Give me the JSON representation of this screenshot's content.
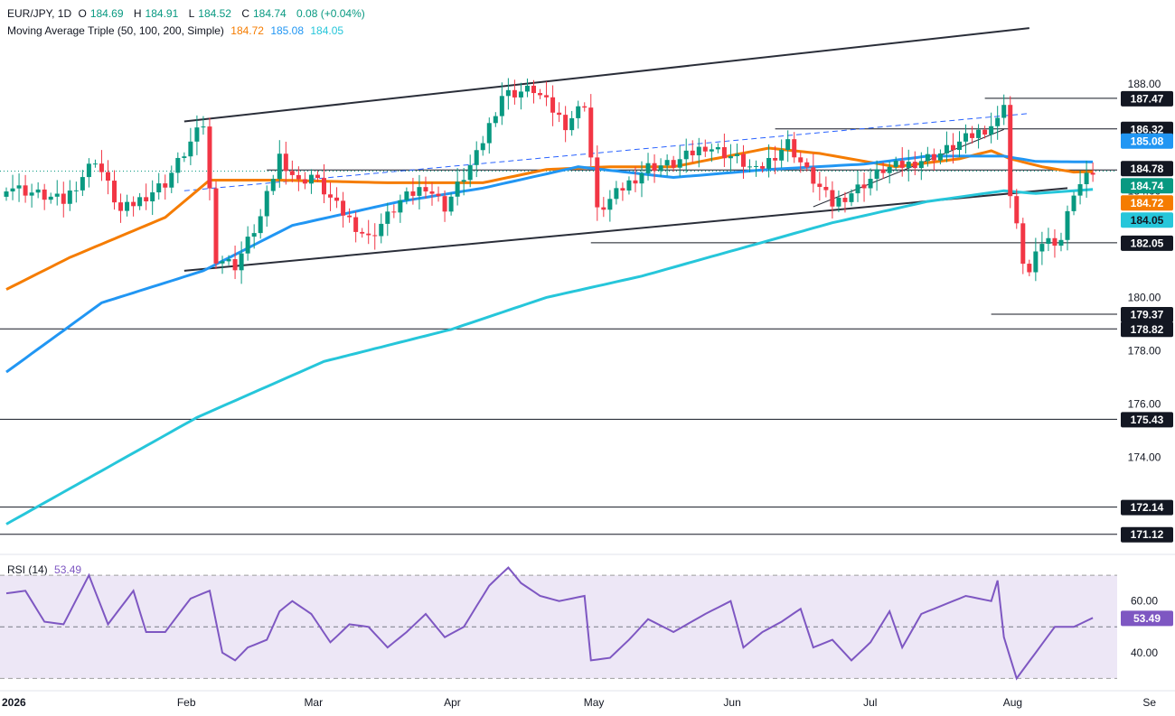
{
  "header": {
    "symbol": "EUR/JPY, 1D",
    "ohlc": {
      "open_label": "O",
      "open": "184.69",
      "high_label": "H",
      "high": "184.91",
      "low_label": "L",
      "low": "184.52",
      "close_label": "C",
      "close": "184.74",
      "change": "0.08 (+0.04%)"
    },
    "ma_title": "Moving Average Triple (50, 100, 200, Simple)",
    "ma_values": [
      "184.72",
      "185.08",
      "184.05"
    ],
    "rsi_title": "RSI (14)",
    "rsi_value": "53.49"
  },
  "colors": {
    "up": "#089981",
    "down": "#f23645",
    "ma50": "#f57c00",
    "ma100": "#2196f3",
    "ma200": "#26c6da",
    "rsi": "#7e57c2",
    "rsi_band": "#ede7f6",
    "trend": "#2a2e39",
    "trend_dashed": "#2962ff",
    "last_price": "#089981",
    "axis_text": "#131722"
  },
  "chart_data": [
    {
      "type": "candlestick",
      "title": "EUR/JPY, 1D",
      "y_ticks": [
        174,
        176,
        178,
        180,
        182,
        184,
        186,
        188
      ],
      "y_tick_labels": [
        "174.00",
        "176.00",
        "178.00",
        "180.00",
        "182.00",
        "184.00",
        "186.00",
        "188.00"
      ],
      "ylim": [
        170.5,
        189.8
      ],
      "x_tick_labels": [
        "2026",
        "Feb",
        "Mar",
        "Apr",
        "May",
        "Jun",
        "Jul",
        "Aug",
        "Se"
      ],
      "x_tick_bar_index": [
        0,
        28,
        48,
        70,
        92,
        114,
        136,
        158,
        180
      ],
      "bar_count": 172,
      "key_close_path": [
        [
          0,
          184.2
        ],
        [
          9,
          183.6
        ],
        [
          14,
          185.2
        ],
        [
          18,
          183.2
        ],
        [
          25,
          184.3
        ],
        [
          29,
          185.8
        ],
        [
          31,
          186.5
        ],
        [
          33,
          181.5
        ],
        [
          36,
          181.2
        ],
        [
          40,
          183.0
        ],
        [
          43,
          185.3
        ],
        [
          46,
          184.3
        ],
        [
          48,
          184.6
        ],
        [
          52,
          183.4
        ],
        [
          57,
          182.2
        ],
        [
          62,
          183.6
        ],
        [
          66,
          184.2
        ],
        [
          69,
          183.4
        ],
        [
          74,
          185.3
        ],
        [
          78,
          187.6
        ],
        [
          83,
          187.8
        ],
        [
          88,
          186.5
        ],
        [
          91,
          187.3
        ],
        [
          93,
          183.2
        ],
        [
          97,
          184.1
        ],
        [
          101,
          184.9
        ],
        [
          105,
          185.0
        ],
        [
          110,
          185.7
        ],
        [
          115,
          185.2
        ],
        [
          118,
          184.7
        ],
        [
          123,
          185.8
        ],
        [
          126,
          184.7
        ],
        [
          130,
          183.5
        ],
        [
          134,
          184.1
        ],
        [
          138,
          184.8
        ],
        [
          142,
          185.0
        ],
        [
          147,
          185.4
        ],
        [
          153,
          186.2
        ],
        [
          156,
          186.6
        ],
        [
          157,
          187.4
        ],
        [
          158,
          183.8
        ],
        [
          160,
          181.4
        ],
        [
          161,
          180.9
        ],
        [
          163,
          182.1
        ],
        [
          166,
          182.2
        ],
        [
          168,
          184.0
        ],
        [
          171,
          184.74
        ]
      ],
      "series": [
        {
          "name": "50",
          "values": [
            [
              0,
              180.3
            ],
            [
              10,
              181.5
            ],
            [
              25,
              183.0
            ],
            [
              32,
              184.4
            ],
            [
              43,
              184.4
            ],
            [
              60,
              184.3
            ],
            [
              75,
              184.3
            ],
            [
              85,
              184.8
            ],
            [
              95,
              184.9
            ],
            [
              105,
              184.9
            ],
            [
              120,
              185.6
            ],
            [
              128,
              185.4
            ],
            [
              140,
              184.9
            ],
            [
              150,
              185.2
            ],
            [
              155,
              185.5
            ],
            [
              158,
              185.2
            ],
            [
              163,
              184.9
            ],
            [
              168,
              184.7
            ],
            [
              171,
              184.72
            ]
          ]
        },
        {
          "name": "100",
          "values": [
            [
              0,
              177.2
            ],
            [
              15,
              179.8
            ],
            [
              31,
              181.0
            ],
            [
              45,
              182.7
            ],
            [
              62,
              183.6
            ],
            [
              75,
              184.1
            ],
            [
              90,
              184.9
            ],
            [
              105,
              184.5
            ],
            [
              120,
              184.8
            ],
            [
              135,
              185.0
            ],
            [
              145,
              185.3
            ],
            [
              157,
              185.3
            ],
            [
              162,
              185.1
            ],
            [
              171,
              185.08
            ]
          ]
        },
        {
          "name": "200",
          "values": [
            [
              0,
              171.5
            ],
            [
              30,
              175.5
            ],
            [
              50,
              177.6
            ],
            [
              70,
              178.8
            ],
            [
              85,
              180.0
            ],
            [
              100,
              180.8
            ],
            [
              115,
              181.8
            ],
            [
              130,
              182.8
            ],
            [
              145,
              183.6
            ],
            [
              157,
              184.0
            ],
            [
              162,
              183.9
            ],
            [
              171,
              184.05
            ]
          ]
        }
      ],
      "horizontal_levels": [
        {
          "value": 187.47,
          "label": "187.47"
        },
        {
          "value": 186.32,
          "label": "186.32"
        },
        {
          "value": 185.08,
          "label": "185.08"
        },
        {
          "value": 184.78,
          "label": "184.78"
        },
        {
          "value": 184.74,
          "label": "184.74"
        },
        {
          "value": 184.72,
          "label": "184.72"
        },
        {
          "value": 184.05,
          "label": "184.05"
        },
        {
          "value": 182.05,
          "label": "182.05"
        },
        {
          "value": 179.37,
          "label": "179.37"
        },
        {
          "value": 178.82,
          "label": "178.82"
        },
        {
          "value": 175.43,
          "label": "175.43"
        },
        {
          "value": 172.14,
          "label": "172.14"
        },
        {
          "value": 171.12,
          "label": "171.12"
        }
      ]
    },
    {
      "type": "line",
      "title": "RSI (14)",
      "ylim": [
        27,
        76
      ],
      "y_ticks": [
        40,
        60
      ],
      "y_tick_labels": [
        "40.00",
        "60.00"
      ],
      "band": [
        30,
        70
      ],
      "midline": 50,
      "last_value": 53.49,
      "series": [
        {
          "name": "RSI",
          "values": [
            [
              0,
              63
            ],
            [
              3,
              64
            ],
            [
              6,
              52
            ],
            [
              9,
              51
            ],
            [
              13,
              70
            ],
            [
              16,
              51
            ],
            [
              20,
              64
            ],
            [
              22,
              48
            ],
            [
              25,
              48
            ],
            [
              29,
              61
            ],
            [
              32,
              64
            ],
            [
              34,
              40
            ],
            [
              36,
              37
            ],
            [
              38,
              42
            ],
            [
              41,
              45
            ],
            [
              43,
              56
            ],
            [
              45,
              60
            ],
            [
              48,
              55
            ],
            [
              51,
              44
            ],
            [
              54,
              51
            ],
            [
              57,
              50
            ],
            [
              60,
              42
            ],
            [
              63,
              48
            ],
            [
              66,
              55
            ],
            [
              69,
              46
            ],
            [
              72,
              50
            ],
            [
              76,
              66
            ],
            [
              79,
              73
            ],
            [
              81,
              67
            ],
            [
              84,
              62
            ],
            [
              87,
              60
            ],
            [
              91,
              62
            ],
            [
              92,
              37
            ],
            [
              95,
              38
            ],
            [
              98,
              45
            ],
            [
              101,
              53
            ],
            [
              105,
              48
            ],
            [
              110,
              55
            ],
            [
              114,
              60
            ],
            [
              116,
              42
            ],
            [
              119,
              48
            ],
            [
              122,
              52
            ],
            [
              125,
              57
            ],
            [
              127,
              42
            ],
            [
              130,
              45
            ],
            [
              133,
              37
            ],
            [
              136,
              44
            ],
            [
              139,
              56
            ],
            [
              141,
              42
            ],
            [
              144,
              55
            ],
            [
              147,
              58
            ],
            [
              151,
              62
            ],
            [
              155,
              60
            ],
            [
              156,
              68
            ],
            [
              157,
              46
            ],
            [
              159,
              30
            ],
            [
              162,
              40
            ],
            [
              165,
              50
            ],
            [
              168,
              50
            ],
            [
              171,
              53.49
            ]
          ]
        }
      ]
    }
  ]
}
